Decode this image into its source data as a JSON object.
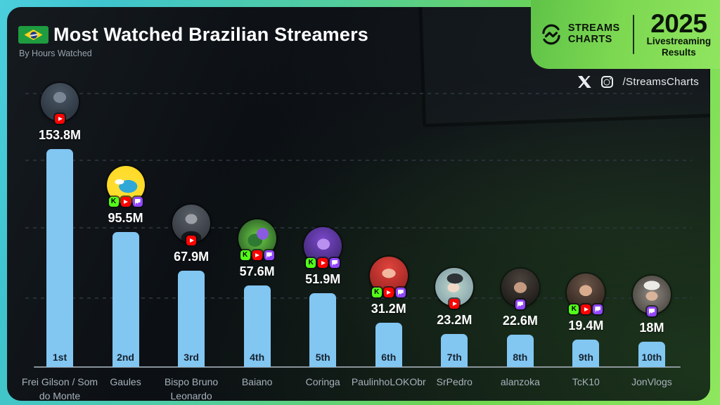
{
  "header": {
    "title": "Most Watched Brazilian Streamers",
    "subtitle": "By Hours Watched",
    "flag_icon": "brazil-flag"
  },
  "brand": {
    "name_line1": "STREAMS",
    "name_line2": "CHARTS",
    "year": "2025",
    "tagline_line1": "Livestreaming",
    "tagline_line2": "Results",
    "panel_color": "#7cd751"
  },
  "social": {
    "icons": [
      "x-icon",
      "instagram-icon"
    ],
    "handle": "/StreamsCharts"
  },
  "chart_data": {
    "type": "bar",
    "title": "Most Watched Brazilian Streamers",
    "metric": "Hours Watched",
    "unit": "millions of hours watched",
    "ylim": [
      0,
      160
    ],
    "grid": "horizontal-dashed",
    "bar_color": "#82c6f2",
    "rank_text_color": "#15232e",
    "categories": [
      "Frei Gilson / Som do Monte",
      "Gaules",
      "Bispo Bruno Leonardo",
      "Baiano",
      "Coringa",
      "PaulinhoLOKObr",
      "SrPedro",
      "alanzoka",
      "TcK10",
      "JonVlogs"
    ],
    "values": [
      153.8,
      95.5,
      67.9,
      57.6,
      51.9,
      31.2,
      23.2,
      22.6,
      19.4,
      18
    ],
    "platform_colors": {
      "kick": "#53fc18",
      "youtube": "#ff0302",
      "twitch": "#9146ff"
    },
    "bars": [
      {
        "rank": "1st",
        "name": "Frei Gilson / Som do Monte",
        "value": 153.8,
        "value_label": "153.8M",
        "platforms": [
          "youtube"
        ],
        "avatar_bg": "radial-gradient(ellipse 30% 26% at 50% 38%, #7a8694 0 55%, transparent 56%), radial-gradient(ellipse 46% 30% at 50% 88%, #323c46 0 60%, transparent 61%), radial-gradient(circle at 50% 30%, #4c5866 0%, #222b35 100%)"
      },
      {
        "rank": "2nd",
        "name": "Gaules",
        "value": 95.5,
        "value_label": "95.5M",
        "platforms": [
          "kick",
          "youtube",
          "twitch"
        ],
        "avatar_bg": "radial-gradient(ellipse 20% 11% at 33% 42%, #ffffff 0 60%, transparent 61%), radial-gradient(ellipse 40% 28% at 56% 54%, #2fa8d8 0 60%, transparent 61%), radial-gradient(circle, #ffe13a 0%, #ffd61e 100%)"
      },
      {
        "rank": "3rd",
        "name": "Bispo Bruno Leonardo",
        "value": 67.9,
        "value_label": "67.9M",
        "platforms": [
          "youtube"
        ],
        "avatar_bg": "radial-gradient(ellipse 28% 24% at 50% 38%, #9aa0a6 0 55%, transparent 56%), radial-gradient(ellipse 44% 30% at 50% 88%, #14181c 0 60%, transparent 61%), radial-gradient(circle at 50% 30%, #585f66 0%, #2b3036 100%)"
      },
      {
        "rank": "4th",
        "name": "Baiano",
        "value": 57.6,
        "value_label": "57.6M",
        "platforms": [
          "kick",
          "youtube",
          "twitch"
        ],
        "avatar_bg": "radial-gradient(ellipse 28% 28% at 64% 38%, #8a5be0 0 55%, transparent 56%), radial-gradient(ellipse 32% 28% at 44% 55%, #2f7a33 0 60%, transparent 61%), radial-gradient(circle, #6fcf44 0%, #1f4d23 100%)"
      },
      {
        "rank": "5th",
        "name": "Coringa",
        "value": 51.9,
        "value_label": "51.9M",
        "platforms": [
          "kick",
          "youtube",
          "twitch"
        ],
        "avatar_bg": "radial-gradient(ellipse 30% 26% at 52% 45%, #b98ff0 0 55%, transparent 56%), radial-gradient(circle at 50% 35%, #7a48cc 0%, #33205e 100%)"
      },
      {
        "rank": "6th",
        "name": "PaulinhoLOKObr",
        "value": 31.2,
        "value_label": "31.2M",
        "platforms": [
          "kick",
          "youtube",
          "twitch"
        ],
        "avatar_bg": "radial-gradient(ellipse 32% 22% at 50% 44%, #f2b8a0 0 55%, transparent 56%), radial-gradient(circle at 50% 30%, #e0443c 0%, #8e1d1d 100%)"
      },
      {
        "rank": "7th",
        "name": "SrPedro",
        "value": 23.2,
        "value_label": "23.2M",
        "platforms": [
          "youtube"
        ],
        "avatar_bg": "radial-gradient(ellipse 38% 24% at 52% 28%, #2e3338 0 55%, transparent 56%), radial-gradient(ellipse 28% 22% at 48% 52%, #f0d9c8 0 55%, transparent 56%), radial-gradient(circle, #bcd8cc 0%, #7c97a3 100%)"
      },
      {
        "rank": "8th",
        "name": "alanzoka",
        "value": 22.6,
        "value_label": "22.6M",
        "platforms": [
          "twitch"
        ],
        "avatar_bg": "radial-gradient(ellipse 30% 26% at 50% 50%, #c49a80 0 55%, transparent 56%), radial-gradient(circle at 50% 30%, #4a423c 0%, #141210 100%)"
      },
      {
        "rank": "9th",
        "name": "TcK10",
        "value": 19.4,
        "value_label": "19.4M",
        "platforms": [
          "kick",
          "youtube",
          "twitch"
        ],
        "avatar_bg": "radial-gradient(ellipse 30% 26% at 50% 45%, #d9ac8d 0 55%, transparent 56%), radial-gradient(circle at 50% 30%, #6b564a 0%, #241a14 100%)"
      },
      {
        "rank": "10th",
        "name": "JonVlogs",
        "value": 18,
        "value_label": "18M",
        "platforms": [
          "twitch"
        ],
        "avatar_bg": "radial-gradient(ellipse 38% 22% at 50% 26%, #eceae4 0 55%, transparent 56%), radial-gradient(ellipse 28% 22% at 50% 54%, #d9b49a 0 55%, transparent 56%), radial-gradient(circle, #8f8a82 0%, #3c3833 100%)"
      }
    ]
  }
}
